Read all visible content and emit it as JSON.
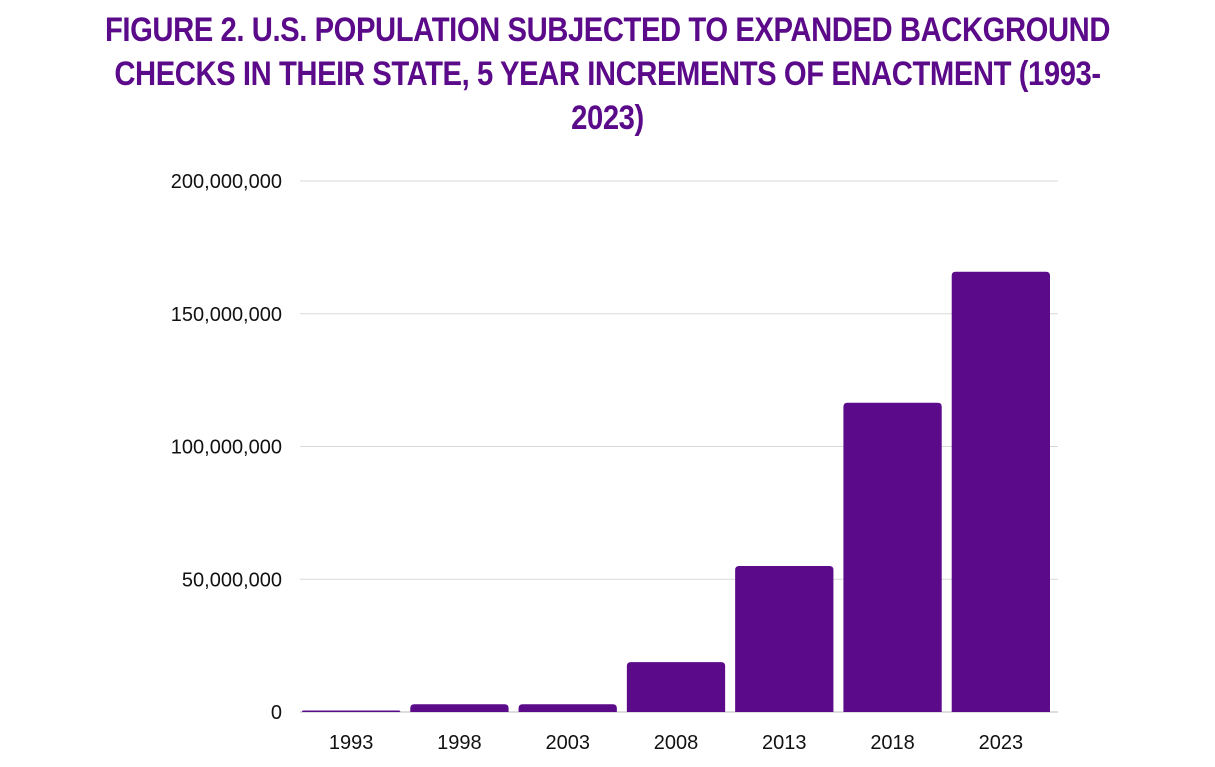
{
  "chart_data": {
    "type": "bar",
    "title_lines": [
      "FIGURE 2. U.S. POPULATION SUBJECTED TO EXPANDED BACKGROUND",
      "CHECKS IN THEIR STATE, 5 YEAR INCREMENTS OF ENACTMENT (1993-2023)"
    ],
    "categories": [
      "1993",
      "1998",
      "2003",
      "2008",
      "2013",
      "2018",
      "2023"
    ],
    "values": [
      500000,
      2900000,
      2900000,
      18800000,
      55000000,
      116500000,
      165800000
    ],
    "xlabel": "",
    "ylabel": "",
    "ylim": [
      0,
      200000000
    ],
    "yticks": [
      0,
      50000000,
      100000000,
      150000000,
      200000000
    ],
    "ytick_labels": [
      "0",
      "50,000,000",
      "100,000,000",
      "150,000,000",
      "200,000,000"
    ],
    "grid": true,
    "colors": {
      "bar": "#5b0a8a",
      "title": "#5b0a8a",
      "grid": "#d9d9d9"
    }
  }
}
